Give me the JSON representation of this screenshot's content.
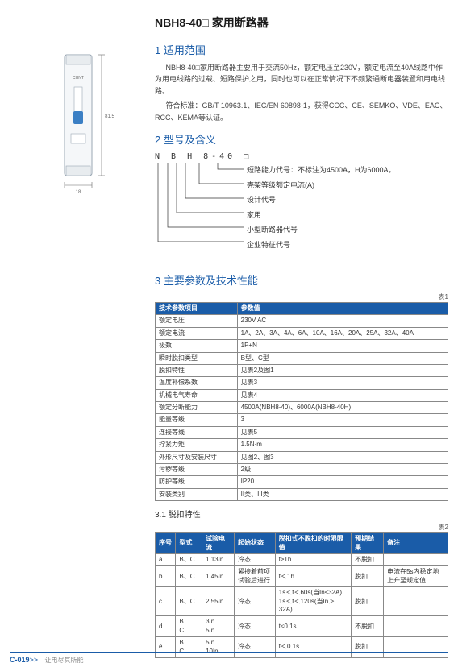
{
  "title": "NBH8-40□ 家用断路器",
  "sections": {
    "s1_title": "1 适用范围",
    "s1_p1": "NBH8-40□家用断路器主要用于交流50Hz，额定电压至230V，额定电流至40A线路中作为用电线路的过载、短路保护之用，同时也可以在正常情况下不频繁通断电器装置和用电线路。",
    "s1_p2": "符合标准：GB/T 10963.1、IEC/EN 60898-1，获得CCC、CE、SEMKO、VDE、EAC、RCC、KEMA等认证。",
    "s2_title": "2 型号及含义",
    "s3_title": "3 主要参数及技术性能",
    "s3_1_title": "3.1 脱扣特性"
  },
  "model": {
    "code": "N B H 8-40 □",
    "labels": [
      "短路能力代号：不标注为4500A，H为6000A。",
      "壳架等级额定电流(A)",
      "设计代号",
      "家用",
      "小型断路器代号",
      "企业特征代号"
    ]
  },
  "table1": {
    "caption": "表1",
    "headers": [
      "技术参数项目",
      "参数值"
    ],
    "rows": [
      [
        "额定电压",
        "230V AC"
      ],
      [
        "额定电流",
        "1A、2A、3A、4A、6A、10A、16A、20A、25A、32A、40A"
      ],
      [
        "极数",
        "1P+N"
      ],
      [
        "瞬时脱扣类型",
        "B型、C型"
      ],
      [
        "脱扣特性",
        "见表2及图1"
      ],
      [
        "温度补偿系数",
        "见表3"
      ],
      [
        "机械电气寿命",
        "见表4"
      ],
      [
        "额定分断能力",
        "4500A(NBH8-40)、6000A(NBH8-40H)"
      ],
      [
        "能量等级",
        "3"
      ],
      [
        "连接等线",
        "见表5"
      ],
      [
        "拧紧力矩",
        "1.5N·m"
      ],
      [
        "外形尺寸及安装尺寸",
        "见图2、图3"
      ],
      [
        "污秽等级",
        "2级"
      ],
      [
        "防护等级",
        "IP20"
      ],
      [
        "安装类别",
        "II类、III类"
      ]
    ]
  },
  "table2": {
    "caption": "表2",
    "headers": [
      "序号",
      "型式",
      "试验电流",
      "起始状态",
      "脱扣式不脱扣的时限限值",
      "预期结果",
      "备注"
    ],
    "rows": [
      [
        "a",
        "B、C",
        "1.13In",
        "冷态",
        "t≥1h",
        "不脱扣",
        ""
      ],
      [
        "b",
        "B、C",
        "1.45In",
        "紧接着前项\n试验后进行",
        "t＜1h",
        "脱扣",
        "电流在5s内稳定地\n上升至规定值"
      ],
      [
        "c",
        "B、C",
        "2.55In",
        "冷态",
        "1s＜t＜60s(当In≤32A)\n1s＜t＜120s(当In＞32A)",
        "脱扣",
        ""
      ],
      [
        "d",
        "B\nC",
        "3In\n5In",
        "冷态",
        "t≤0.1s",
        "不脱扣",
        ""
      ],
      [
        "e",
        "B\nC",
        "5In\n10In",
        "冷态",
        "t＜0.1s",
        "脱扣",
        ""
      ]
    ],
    "remark_span": 2
  },
  "footer": {
    "page": "C-019",
    "arrows": ">>",
    "slogan": "让电尽其所能"
  },
  "colors": {
    "brand": "#1a5ca8",
    "border": "#888888"
  },
  "svg": {
    "body_fill": "#f5f7f9",
    "body_stroke": "#9aa7b3",
    "lever": "#3b7fc4",
    "text": "#666"
  }
}
